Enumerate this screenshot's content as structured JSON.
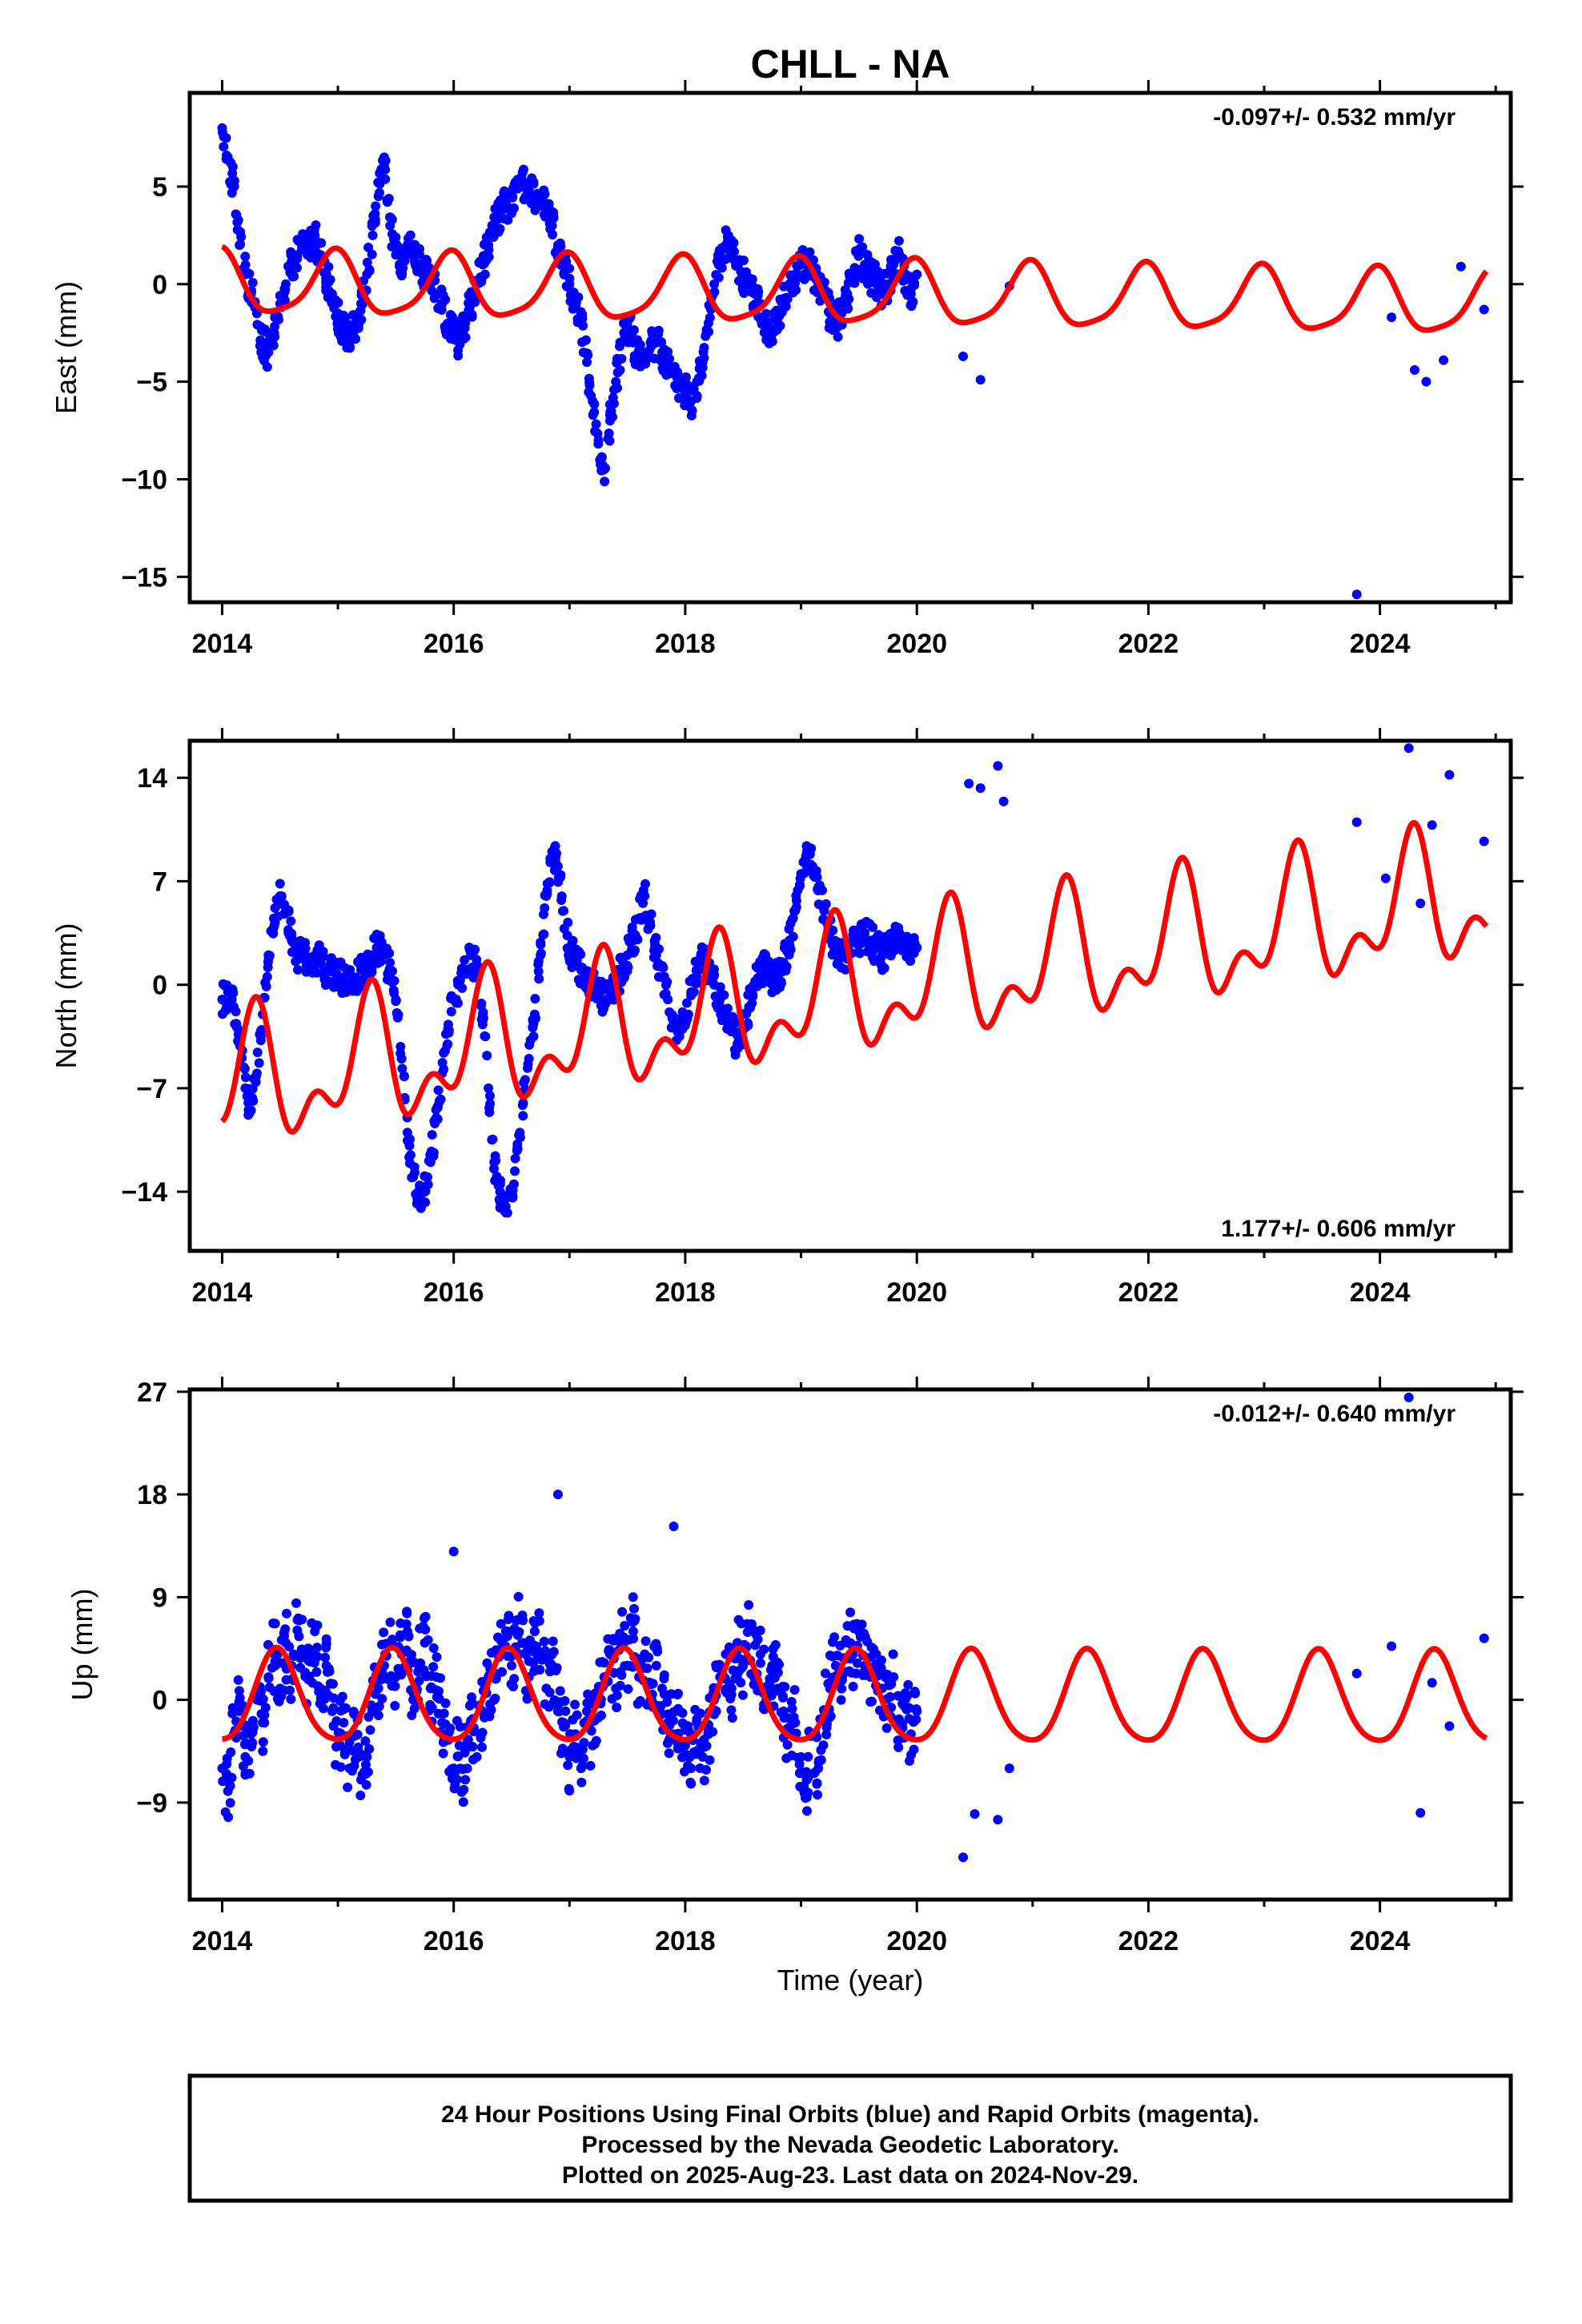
{
  "title": "CHLL - NA",
  "footer": {
    "line1": "24 Hour Positions Using Final Orbits (blue) and Rapid Orbits (magenta).",
    "line2": "Processed by the Nevada Geodetic Laboratory.",
    "line3": "Plotted on 2025-Aug-23. Last data on 2024-Nov-29."
  },
  "colors": {
    "points": "#0000ff",
    "model": "#ff0000",
    "frame": "#000000"
  },
  "chart_data": [
    {
      "type": "scatter",
      "ylabel": "East (mm)",
      "xlabel": "",
      "rate_text": "-0.097+/- 0.532 mm/yr",
      "rate_position": "top-right",
      "xlim": [
        2013.72,
        2025.13
      ],
      "ylim": [
        -16.3,
        9.8
      ],
      "xticks": [
        2014,
        2016,
        2018,
        2020,
        2022,
        2024
      ],
      "yticks": [
        -15,
        -10,
        -5,
        0,
        5
      ],
      "ytick_labels": [
        "−15",
        "−10",
        "−5",
        "0",
        "5"
      ],
      "model": {
        "rate": -0.097,
        "offset": 0.0,
        "annual_amp": 1.6,
        "annual_phase": 0.2,
        "semiannual_amp": 0.35,
        "semiannual_phase": 0.0
      },
      "series": [
        {
          "kind": "observations",
          "x": [
            2014.0,
            2014.05,
            2014.1,
            2014.15,
            2014.2,
            2014.25,
            2014.3,
            2014.35,
            2014.4,
            2014.45,
            2014.5,
            2014.55,
            2014.6,
            2014.65,
            2014.7,
            2014.75,
            2014.8,
            2014.85,
            2014.9,
            2014.95,
            2015.0,
            2015.05,
            2015.1,
            2015.15,
            2015.2,
            2015.25,
            2015.3,
            2015.35,
            2015.4,
            2015.45,
            2015.5,
            2015.55,
            2015.6,
            2015.65,
            2015.7,
            2015.75,
            2015.8,
            2015.85,
            2015.9,
            2015.95,
            2016.0,
            2016.05,
            2016.1,
            2016.15,
            2016.2,
            2016.25,
            2016.3,
            2016.35,
            2016.4,
            2016.45,
            2016.5,
            2016.55,
            2016.6,
            2016.65,
            2016.7,
            2016.75,
            2016.8,
            2016.85,
            2016.9,
            2016.95,
            2017.0,
            2017.05,
            2017.1,
            2017.15,
            2017.2,
            2017.25,
            2017.3,
            2017.35,
            2017.4,
            2017.45,
            2017.5,
            2017.55,
            2017.6,
            2017.65,
            2017.7,
            2017.75,
            2017.8,
            2017.85,
            2017.9,
            2017.95,
            2018.0,
            2018.05,
            2018.1,
            2018.15,
            2018.2,
            2018.25,
            2018.3,
            2018.35,
            2018.4,
            2018.45,
            2018.5,
            2018.55,
            2018.6,
            2018.65,
            2018.7,
            2018.75,
            2018.8,
            2018.85,
            2018.9,
            2018.95,
            2019.0,
            2019.05,
            2019.1,
            2019.15,
            2019.2,
            2019.25,
            2019.3,
            2019.35,
            2019.4,
            2019.45,
            2019.5,
            2019.55,
            2019.6,
            2019.65,
            2019.7,
            2019.75,
            2019.8,
            2019.85,
            2019.9,
            2019.95,
            2020.0,
            2020.4,
            2020.55,
            2020.8,
            2023.8,
            2024.1,
            2024.3,
            2024.4,
            2024.55,
            2024.7,
            2024.9
          ],
          "y": [
            8.0,
            6.5,
            5.0,
            2.0,
            0.5,
            -0.5,
            -1.5,
            -3.0,
            -3.5,
            -2.5,
            -1.0,
            0.0,
            1.0,
            1.5,
            2.0,
            2.0,
            2.5,
            1.5,
            0.5,
            -0.5,
            -1.5,
            -2.5,
            -3.0,
            -2.0,
            -1.0,
            0.5,
            2.5,
            4.5,
            6.5,
            3.0,
            1.5,
            1.0,
            1.5,
            2.0,
            1.0,
            0.5,
            0.0,
            -0.5,
            -1.0,
            -2.0,
            -2.5,
            -3.0,
            -2.0,
            -1.0,
            0.0,
            1.0,
            2.0,
            3.0,
            3.5,
            4.0,
            4.5,
            5.0,
            5.0,
            5.0,
            4.5,
            4.5,
            4.0,
            3.0,
            2.0,
            1.0,
            0.0,
            -1.0,
            -2.0,
            -4.0,
            -6.0,
            -8.0,
            -9.5,
            -7.0,
            -5.0,
            -3.0,
            -2.0,
            -3.0,
            -4.0,
            -3.5,
            -3.0,
            -3.0,
            -3.5,
            -4.0,
            -4.5,
            -5.0,
            -5.5,
            -6.0,
            -5.0,
            -4.0,
            -2.0,
            0.0,
            1.5,
            2.0,
            1.5,
            1.0,
            0.5,
            0.0,
            -0.5,
            -1.0,
            -2.0,
            -2.5,
            -2.0,
            -1.0,
            0.0,
            0.5,
            1.0,
            1.0,
            0.5,
            0.0,
            -0.5,
            -1.5,
            -2.0,
            -1.5,
            -0.5,
            0.5,
            1.5,
            1.0,
            0.5,
            0.0,
            -0.5,
            0.0,
            1.0,
            1.5,
            0.5,
            -0.5,
            0.5,
            -3.7,
            -4.9,
            -0.1,
            -15.9,
            -1.7,
            -4.4,
            -5.0,
            -3.9,
            0.9,
            -1.3
          ]
        }
      ]
    },
    {
      "type": "scatter",
      "ylabel": "North (mm)",
      "xlabel": "",
      "rate_text": "1.177+/- 0.606 mm/yr",
      "rate_position": "bottom-right",
      "xlim": [
        2013.72,
        2025.13
      ],
      "ylim": [
        -18.0,
        16.5
      ],
      "xticks": [
        2014,
        2016,
        2018,
        2020,
        2022,
        2024
      ],
      "yticks": [
        -14,
        -7,
        0,
        7,
        14
      ],
      "ytick_labels": [
        "−14",
        "−7",
        "0",
        "7",
        "14"
      ],
      "model": {
        "rate": 1.177,
        "offset": -7.0,
        "annual_amp": 3.6,
        "annual_phase": 4.6,
        "semiannual_amp": 2.3,
        "semiannual_phase": 2.5
      },
      "series": [
        {
          "kind": "observations",
          "x": [
            2014.0,
            2014.05,
            2014.1,
            2014.15,
            2014.2,
            2014.25,
            2014.3,
            2014.35,
            2014.4,
            2014.45,
            2014.5,
            2014.55,
            2014.6,
            2014.65,
            2014.7,
            2014.75,
            2014.8,
            2014.85,
            2014.9,
            2014.95,
            2015.0,
            2015.05,
            2015.1,
            2015.15,
            2015.2,
            2015.25,
            2015.3,
            2015.35,
            2015.4,
            2015.45,
            2015.5,
            2015.55,
            2015.6,
            2015.65,
            2015.7,
            2015.75,
            2015.8,
            2015.85,
            2015.9,
            2015.95,
            2016.0,
            2016.05,
            2016.1,
            2016.15,
            2016.2,
            2016.25,
            2016.3,
            2016.35,
            2016.4,
            2016.45,
            2016.5,
            2016.55,
            2016.6,
            2016.65,
            2016.7,
            2016.75,
            2016.8,
            2016.85,
            2016.9,
            2016.95,
            2017.0,
            2017.05,
            2017.1,
            2017.15,
            2017.2,
            2017.25,
            2017.3,
            2017.35,
            2017.4,
            2017.45,
            2017.5,
            2017.55,
            2017.6,
            2017.65,
            2017.7,
            2017.75,
            2017.8,
            2017.85,
            2017.9,
            2017.95,
            2018.0,
            2018.05,
            2018.1,
            2018.15,
            2018.2,
            2018.25,
            2018.3,
            2018.35,
            2018.4,
            2018.45,
            2018.5,
            2018.55,
            2018.6,
            2018.65,
            2018.7,
            2018.75,
            2018.8,
            2018.85,
            2018.9,
            2018.95,
            2019.0,
            2019.05,
            2019.1,
            2019.15,
            2019.2,
            2019.25,
            2019.3,
            2019.35,
            2019.4,
            2019.45,
            2019.5,
            2019.55,
            2019.6,
            2019.65,
            2019.7,
            2019.75,
            2019.8,
            2019.85,
            2019.9,
            2019.95,
            2020.0,
            2020.45,
            2020.55,
            2020.7,
            2020.75,
            2023.8,
            2024.05,
            2024.25,
            2024.35,
            2024.45,
            2024.6,
            2024.9
          ],
          "y": [
            -1.0,
            -0.5,
            -1.5,
            -4.0,
            -7.0,
            -8.5,
            -6.0,
            -2.0,
            2.0,
            4.0,
            6.0,
            5.0,
            3.0,
            2.0,
            2.0,
            1.5,
            2.0,
            1.5,
            1.0,
            1.0,
            0.5,
            0.5,
            0.0,
            0.5,
            1.0,
            1.5,
            2.0,
            2.5,
            2.0,
            1.0,
            -1.0,
            -5.0,
            -10.0,
            -13.0,
            -14.5,
            -14.0,
            -12.0,
            -9.0,
            -6.0,
            -3.0,
            -1.0,
            0.0,
            1.0,
            2.0,
            1.0,
            -2.0,
            -7.0,
            -12.0,
            -14.0,
            -15.0,
            -14.0,
            -11.0,
            -8.0,
            -5.0,
            -2.0,
            2.0,
            6.0,
            9.0,
            8.0,
            5.0,
            2.5,
            1.5,
            1.0,
            0.5,
            0.0,
            -0.5,
            -1.0,
            -0.5,
            0.0,
            1.0,
            2.0,
            3.0,
            4.5,
            6.0,
            4.0,
            2.0,
            0.5,
            -1.0,
            -2.5,
            -3.5,
            -2.0,
            -0.5,
            1.0,
            2.0,
            1.0,
            0.0,
            -1.0,
            -2.0,
            -3.0,
            -4.0,
            -3.0,
            -1.5,
            0.0,
            1.0,
            1.0,
            0.5,
            0.5,
            1.5,
            3.0,
            5.0,
            7.5,
            9.0,
            8.0,
            6.5,
            5.0,
            3.5,
            2.5,
            2.0,
            2.0,
            3.0,
            3.0,
            3.5,
            3.0,
            2.5,
            2.0,
            2.5,
            3.0,
            3.5,
            3.0,
            2.5,
            2.5,
            13.6,
            13.3,
            14.8,
            12.4,
            11.0,
            7.2,
            16.0,
            5.5,
            10.8,
            14.2,
            9.7
          ]
        }
      ]
    },
    {
      "type": "scatter",
      "ylabel": "Up (mm)",
      "xlabel": "Time (year)",
      "rate_text": "-0.012+/- 0.640 mm/yr",
      "rate_position": "top-right",
      "xlim": [
        2013.72,
        2025.13
      ],
      "ylim": [
        -17.5,
        27.2
      ],
      "xticks": [
        2014,
        2016,
        2018,
        2020,
        2022,
        2024
      ],
      "yticks": [
        -9,
        0,
        9,
        18,
        27
      ],
      "ytick_labels": [
        "−9",
        "0",
        "9",
        "18",
        "27"
      ],
      "model": {
        "rate": -0.012,
        "offset": 0.0,
        "annual_amp": 4.0,
        "annual_phase": 3.3,
        "semiannual_amp": 0.6,
        "semiannual_phase": 0.5
      },
      "series": [
        {
          "kind": "observations",
          "x": [
            2014.0,
            2014.05,
            2014.1,
            2014.15,
            2014.2,
            2014.25,
            2014.3,
            2014.35,
            2014.4,
            2014.45,
            2014.5,
            2014.55,
            2014.6,
            2014.65,
            2014.7,
            2014.75,
            2014.8,
            2014.85,
            2014.9,
            2014.95,
            2015.0,
            2015.05,
            2015.1,
            2015.15,
            2015.2,
            2015.25,
            2015.3,
            2015.35,
            2015.4,
            2015.45,
            2015.5,
            2015.55,
            2015.6,
            2015.65,
            2015.7,
            2015.75,
            2015.8,
            2015.85,
            2015.9,
            2015.95,
            2016.0,
            2016.05,
            2016.1,
            2016.15,
            2016.2,
            2016.25,
            2016.3,
            2016.35,
            2016.4,
            2016.45,
            2016.5,
            2016.55,
            2016.6,
            2016.65,
            2016.7,
            2016.75,
            2016.8,
            2016.85,
            2016.9,
            2016.95,
            2017.0,
            2017.05,
            2017.1,
            2017.15,
            2017.2,
            2017.25,
            2017.3,
            2017.35,
            2017.4,
            2017.45,
            2017.5,
            2017.55,
            2017.6,
            2017.65,
            2017.7,
            2017.75,
            2017.8,
            2017.85,
            2017.9,
            2017.95,
            2018.0,
            2018.05,
            2018.1,
            2018.15,
            2018.2,
            2018.25,
            2018.3,
            2018.35,
            2018.4,
            2018.45,
            2018.5,
            2018.55,
            2018.6,
            2018.65,
            2018.7,
            2018.75,
            2018.8,
            2018.85,
            2018.9,
            2018.95,
            2019.0,
            2019.05,
            2019.1,
            2019.15,
            2019.2,
            2019.25,
            2019.3,
            2019.35,
            2019.4,
            2019.45,
            2019.5,
            2019.55,
            2019.6,
            2019.65,
            2019.7,
            2019.75,
            2019.8,
            2019.85,
            2019.9,
            2019.95,
            2020.0,
            2020.4,
            2020.5,
            2020.7,
            2020.8,
            2016.0,
            2016.9,
            2017.9,
            2023.8,
            2024.1,
            2024.25,
            2024.35,
            2024.45,
            2024.6,
            2024.9
          ],
          "y": [
            -6.0,
            -8.0,
            -3.0,
            -1.0,
            -5.0,
            -3.0,
            0.0,
            -2.0,
            2.0,
            4.0,
            1.0,
            5.0,
            3.0,
            7.0,
            4.0,
            2.0,
            6.0,
            1.0,
            3.0,
            -1.0,
            -4.0,
            -2.0,
            -6.0,
            -3.0,
            -7.0,
            -5.0,
            -1.0,
            1.0,
            3.0,
            5.0,
            2.0,
            4.0,
            6.0,
            0.0,
            3.0,
            5.0,
            1.0,
            2.0,
            -2.0,
            -3.0,
            -6.0,
            -4.0,
            -7.0,
            -2.0,
            -5.0,
            -1.0,
            2.0,
            0.0,
            4.0,
            6.0,
            3.0,
            7.0,
            5.0,
            2.0,
            6.0,
            4.0,
            1.0,
            3.0,
            -1.0,
            -2.0,
            -5.0,
            -3.0,
            -6.0,
            -1.0,
            -4.0,
            0.0,
            2.0,
            4.0,
            1.0,
            5.0,
            3.0,
            6.0,
            2.0,
            4.0,
            0.0,
            3.0,
            1.0,
            -2.0,
            -3.0,
            -1.0,
            -4.0,
            -6.0,
            -2.0,
            -5.0,
            -3.0,
            0.0,
            2.0,
            4.0,
            1.0,
            5.0,
            3.0,
            6.0,
            2.0,
            4.0,
            0.0,
            3.0,
            1.0,
            -1.0,
            -3.0,
            -2.0,
            -5.0,
            -7.0,
            -3.0,
            -6.0,
            -1.0,
            1.0,
            3.0,
            2.0,
            5.0,
            4.0,
            6.0,
            3.0,
            2.0,
            4.0,
            1.0,
            -1.0,
            2.0,
            -2.0,
            0.0,
            -3.0,
            -1.0,
            -13.8,
            -10.0,
            -10.5,
            -6.0,
            13.0,
            18.0,
            15.2,
            2.3,
            4.7,
            26.5,
            -9.9,
            1.5,
            -2.3,
            5.4
          ]
        }
      ]
    }
  ]
}
